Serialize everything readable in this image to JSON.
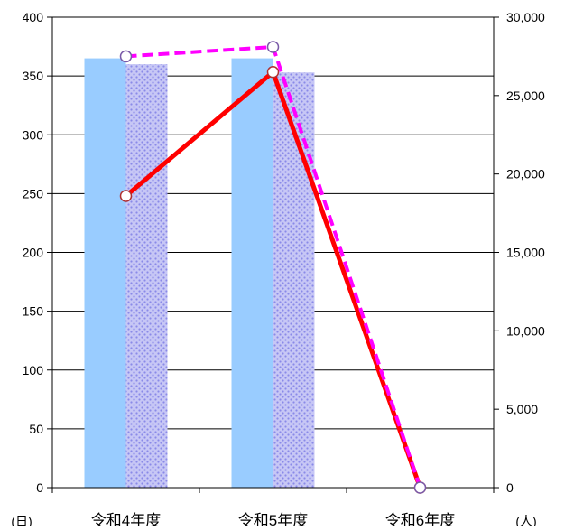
{
  "chart_data": {
    "type": "bar",
    "categories": [
      "令和4年度",
      "令和5年度",
      "令和6年度"
    ],
    "left_axis": {
      "unit_label": "(日)",
      "ylim": [
        0,
        400
      ],
      "ticks": [
        "0",
        "50",
        "100",
        "150",
        "200",
        "250",
        "300",
        "350",
        "400"
      ]
    },
    "right_axis": {
      "unit_label": "(人)",
      "ylim": [
        0,
        30000
      ],
      "ticks": [
        "0",
        "5,000",
        "10,000",
        "15,000",
        "20,000",
        "25,000",
        "30,000"
      ]
    },
    "bars_left_axis": [
      {
        "style": "solid",
        "color": "#99ccff",
        "values": [
          365,
          365,
          null
        ]
      },
      {
        "style": "dotted-pattern",
        "color": "#9999ff",
        "values": [
          360,
          353,
          null
        ]
      }
    ],
    "lines_right_axis": [
      {
        "style": "solid",
        "color": "#ff0000",
        "values": [
          18600,
          26500,
          0
        ]
      },
      {
        "style": "dashed",
        "color": "#ff00ff",
        "values": [
          27500,
          28100,
          0
        ]
      }
    ],
    "grid": "horizontal",
    "legend": "none"
  }
}
